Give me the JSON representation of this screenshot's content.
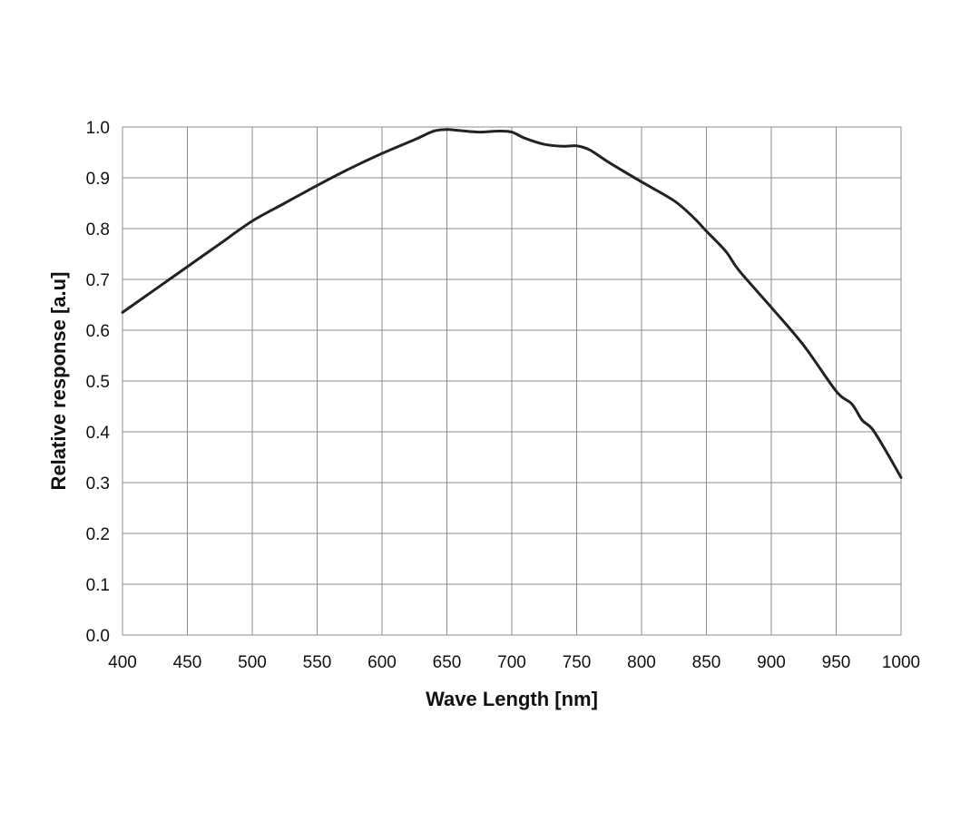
{
  "chart_data": {
    "type": "line",
    "title": "",
    "xlabel": "Wave Length [nm]",
    "ylabel": "Relative response [a.u]",
    "xlim": [
      400,
      1000
    ],
    "ylim": [
      0.0,
      1.0
    ],
    "x_ticks": [
      "400",
      "450",
      "500",
      "550",
      "600",
      "650",
      "700",
      "750",
      "800",
      "850",
      "900",
      "950",
      "1000"
    ],
    "y_ticks": [
      "0.0",
      "0.1",
      "0.2",
      "0.3",
      "0.4",
      "0.5",
      "0.6",
      "0.7",
      "0.8",
      "0.9",
      "1.0"
    ],
    "grid": true,
    "series": [
      {
        "x": [
          400,
          425,
          450,
          475,
          500,
          525,
          550,
          575,
          600,
          625,
          640,
          650,
          660,
          675,
          690,
          700,
          710,
          725,
          740,
          750,
          760,
          775,
          800,
          825,
          840,
          850,
          865,
          875,
          900,
          925,
          950,
          962,
          970,
          978,
          990,
          1000
        ],
        "y": [
          0.635,
          0.68,
          0.725,
          0.77,
          0.815,
          0.85,
          0.885,
          0.918,
          0.948,
          0.975,
          0.992,
          0.995,
          0.993,
          0.99,
          0.992,
          0.99,
          0.978,
          0.966,
          0.962,
          0.963,
          0.955,
          0.93,
          0.892,
          0.855,
          0.822,
          0.795,
          0.755,
          0.718,
          0.645,
          0.57,
          0.48,
          0.455,
          0.423,
          0.405,
          0.355,
          0.31
        ],
        "color": "#222222"
      }
    ]
  }
}
